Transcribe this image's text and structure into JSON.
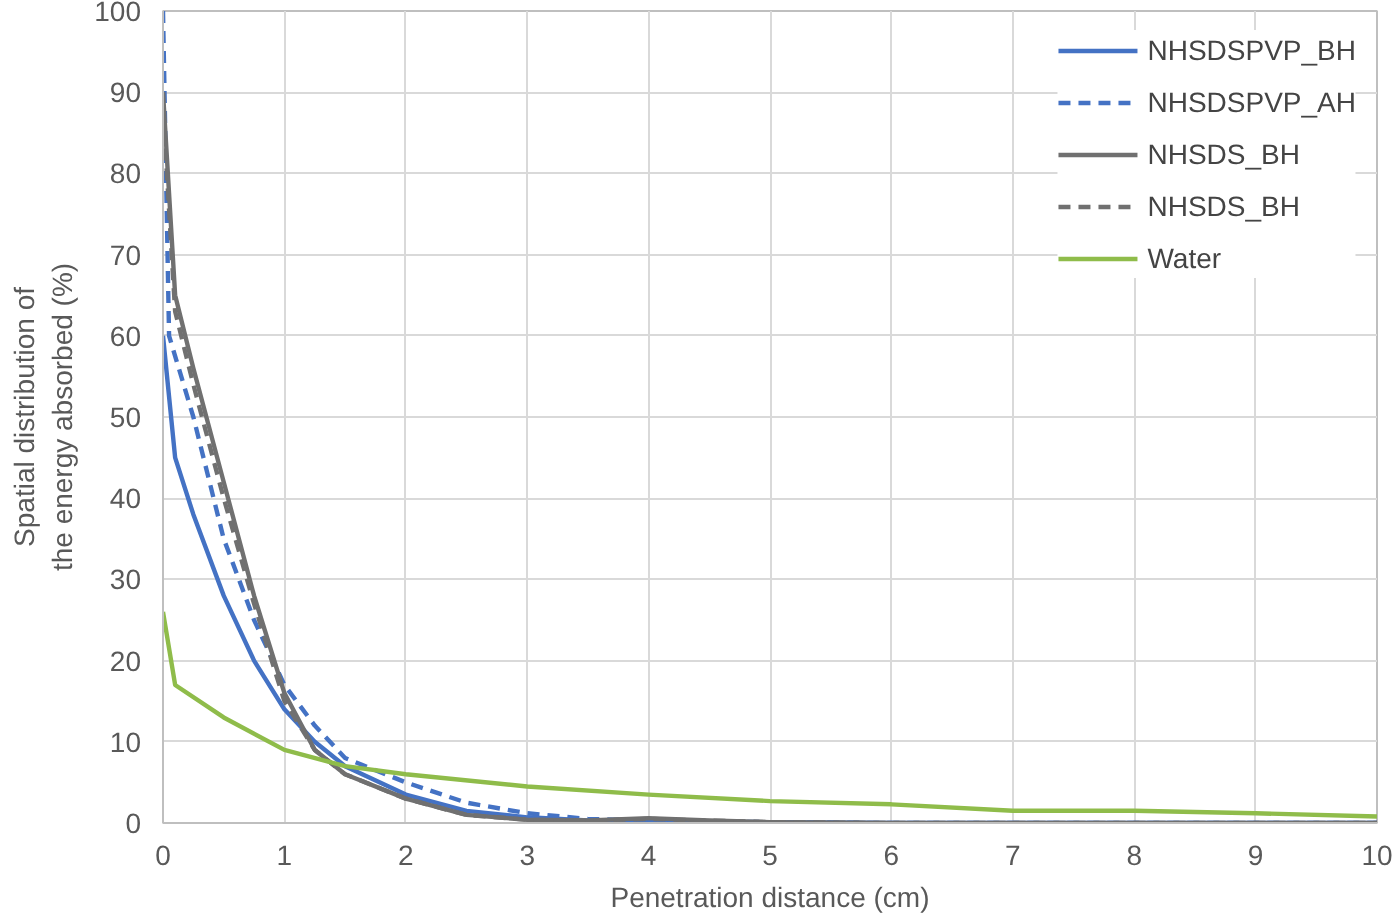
{
  "chart_data": {
    "type": "line",
    "xlabel": "Penetration distance (cm)",
    "ylabel": "Spatial distribution of\nthe energy absorbed (%)",
    "xlim": [
      0,
      10
    ],
    "ylim": [
      0,
      100
    ],
    "xticks": [
      0,
      1,
      2,
      3,
      4,
      5,
      6,
      7,
      8,
      9,
      10
    ],
    "yticks": [
      0,
      10,
      20,
      30,
      40,
      50,
      60,
      70,
      80,
      90,
      100
    ],
    "grid": true,
    "legend": "top right",
    "series": [
      {
        "name": "NHSDSPVP_BH",
        "color": "#4472c4",
        "line_style": "solid",
        "x": [
          0,
          0.1,
          0.25,
          0.5,
          0.75,
          1,
          1.25,
          1.5,
          2,
          2.5,
          3,
          3.5,
          4,
          5,
          6,
          7,
          8,
          9,
          10
        ],
        "values": [
          60,
          45,
          38,
          28,
          20,
          14,
          10,
          7,
          3.5,
          1.5,
          0.7,
          0.3,
          0.2,
          0.1,
          0,
          0,
          0,
          0,
          0
        ]
      },
      {
        "name": "NHSDSPVP_AH",
        "color": "#4472c4",
        "line_style": "dashed",
        "x": [
          0,
          0.05,
          0.25,
          0.5,
          0.75,
          1,
          1.25,
          1.5,
          2,
          2.5,
          3,
          3.5,
          4,
          5,
          6,
          7,
          8,
          9,
          10
        ],
        "values": [
          100,
          60,
          50,
          35,
          25,
          17,
          12,
          8,
          5,
          2.5,
          1.2,
          0.5,
          0.3,
          0.1,
          0,
          0,
          0,
          0,
          0
        ]
      },
      {
        "name": "NHSDS_BH",
        "color": "#707070",
        "line_style": "solid",
        "x": [
          0,
          0.1,
          0.25,
          0.5,
          0.75,
          1,
          1.25,
          1.5,
          2,
          2.5,
          3,
          3.5,
          4,
          4.5,
          5,
          6,
          7,
          8,
          9,
          10
        ],
        "values": [
          90,
          65,
          56,
          42,
          28,
          16,
          9,
          6,
          3,
          1,
          0.4,
          0.3,
          0.6,
          0.3,
          0.1,
          0,
          0,
          0,
          0,
          0
        ]
      },
      {
        "name": "NHSDS_BH",
        "color": "#707070",
        "line_style": "dashed",
        "x": [
          0,
          0.1,
          0.25,
          0.5,
          0.75,
          1,
          1.25,
          1.5,
          2,
          2.5,
          3,
          3.5,
          4,
          5,
          6,
          7,
          8,
          9,
          10
        ],
        "values": [
          88,
          63,
          54,
          40,
          27,
          15,
          9,
          6,
          3,
          1,
          0.4,
          0.3,
          0.5,
          0.1,
          0,
          0,
          0,
          0,
          0
        ]
      },
      {
        "name": "Water",
        "color": "#8fbc4a",
        "line_style": "solid",
        "x": [
          0,
          0.1,
          0.5,
          1,
          1.5,
          2,
          3,
          4,
          5,
          6,
          7,
          8,
          9,
          10
        ],
        "values": [
          26,
          17,
          13,
          9,
          7,
          6,
          4.5,
          3.5,
          2.7,
          2.3,
          1.5,
          1.5,
          1.2,
          0.8
        ]
      }
    ]
  }
}
